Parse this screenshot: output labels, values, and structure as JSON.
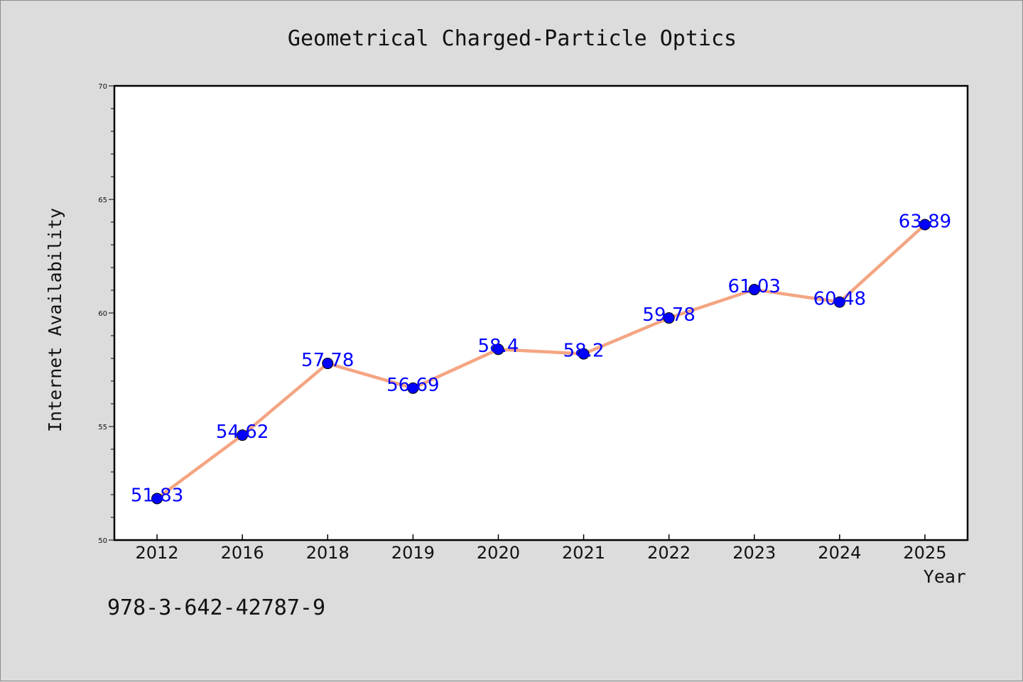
{
  "chart_data": {
    "type": "line",
    "title": "Geometrical Charged-Particle Optics",
    "xlabel": "Year",
    "ylabel": "Internet Availability",
    "categories": [
      "2012",
      "2016",
      "2018",
      "2019",
      "2020",
      "2021",
      "2022",
      "2023",
      "2024",
      "2025"
    ],
    "values": [
      51.83,
      54.62,
      57.78,
      56.69,
      58.4,
      58.2,
      59.78,
      61.03,
      60.48,
      63.89
    ],
    "data_labels": [
      "51.83",
      "54.62",
      "57.78",
      "56.69",
      "58.4",
      "58.2",
      "59.78",
      "61.03",
      "60.48",
      "63.89"
    ],
    "ylim": [
      50,
      70
    ],
    "yticks": [
      "50",
      "55",
      "60",
      "65",
      "70"
    ],
    "grid": false,
    "line_color": "#f4a582",
    "marker_color": "#0000ff",
    "label_color": "#0000ff"
  },
  "footer_text": "978-3-642-42787-9"
}
